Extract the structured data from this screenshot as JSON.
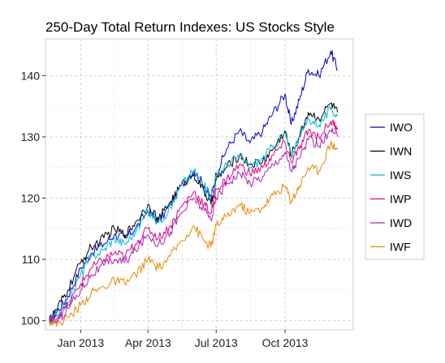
{
  "chart_data": {
    "type": "line",
    "title": "250-Day Total Return Indexes: US Stocks Style",
    "xlabel": "",
    "ylabel": "",
    "x_ticks": [
      "Jan 2013",
      "Apr 2013",
      "Jul 2013",
      "Oct 2013"
    ],
    "x_tick_dates": [
      "2013-01-01",
      "2013-04-01",
      "2013-07-01",
      "2013-10-01"
    ],
    "xlim": [
      "2012-11-15",
      "2013-12-31"
    ],
    "y_ticks": [
      100,
      110,
      120,
      130,
      140
    ],
    "ylim": [
      98.5,
      146
    ],
    "grid": true,
    "legend_position": "right",
    "x": [
      "2012-11-20",
      "2012-12-01",
      "2012-12-15",
      "2013-01-01",
      "2013-01-15",
      "2013-02-01",
      "2013-02-15",
      "2013-03-01",
      "2013-03-15",
      "2013-04-01",
      "2013-04-15",
      "2013-05-01",
      "2013-05-15",
      "2013-06-01",
      "2013-06-15",
      "2013-06-24",
      "2013-07-01",
      "2013-07-15",
      "2013-08-01",
      "2013-08-15",
      "2013-09-01",
      "2013-09-15",
      "2013-10-01",
      "2013-10-09",
      "2013-10-20",
      "2013-11-01",
      "2013-11-15",
      "2013-12-01",
      "2013-12-10"
    ],
    "series": [
      {
        "name": "IWO",
        "color": "#0000cc",
        "values": [
          100,
          101.5,
          104,
          108.5,
          111,
          112.5,
          114,
          113.5,
          115,
          118,
          116,
          119,
          122,
          124.5,
          122,
          120,
          124,
          128,
          131,
          129,
          131,
          134,
          137,
          132,
          136,
          141,
          140,
          144,
          141
        ]
      },
      {
        "name": "IWN",
        "color": "#000000",
        "values": [
          100,
          102,
          105,
          109.5,
          112,
          113.5,
          115,
          114,
          116,
          119,
          116.5,
          119.5,
          122,
          124,
          121,
          119,
          123,
          125,
          127,
          125.5,
          126,
          128,
          131,
          127,
          130,
          134,
          133,
          135.5,
          134
        ]
      },
      {
        "name": "IWS",
        "color": "#00bbdd",
        "values": [
          100,
          101,
          103,
          107.5,
          110.5,
          111.5,
          113.5,
          112.5,
          114.5,
          118,
          116,
          118.5,
          122,
          124.5,
          122,
          120,
          123.5,
          125.5,
          127,
          125,
          126.5,
          128.5,
          130.5,
          127,
          130,
          133,
          132,
          134.5,
          133.5
        ]
      },
      {
        "name": "IWP",
        "color": "#e6007e",
        "values": [
          100,
          100.5,
          102.5,
          106,
          108.5,
          110,
          111,
          110.5,
          112.5,
          115,
          113.5,
          115.5,
          118.5,
          121,
          119,
          117.5,
          121.5,
          123,
          125.5,
          124,
          125,
          127,
          129,
          126,
          128,
          131,
          130,
          132.5,
          131.5
        ]
      },
      {
        "name": "IWD",
        "color": "#aa22bb",
        "values": [
          100,
          100,
          102,
          105,
          107.5,
          109,
          110,
          109.5,
          111.5,
          114,
          112.5,
          114.5,
          117.5,
          120,
          118,
          116.5,
          120,
          122.5,
          124,
          122.5,
          123.5,
          125.5,
          127.5,
          124.5,
          126.5,
          129.5,
          128.5,
          131,
          130
        ]
      },
      {
        "name": "IWF",
        "color": "#ee8800",
        "values": [
          100,
          99.5,
          100.5,
          102.5,
          104.5,
          105.5,
          106.5,
          106,
          107.5,
          110,
          108.5,
          110.5,
          113,
          115.5,
          113,
          112,
          115.5,
          117,
          119,
          117.5,
          118.5,
          120.5,
          122,
          119.5,
          122,
          125,
          124.5,
          129,
          128
        ]
      }
    ]
  }
}
